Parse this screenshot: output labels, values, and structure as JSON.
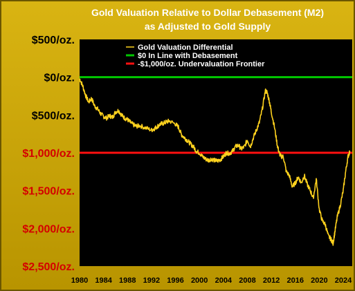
{
  "chart_data": {
    "type": "line",
    "title_line1": "Gold Valuation Relative to Dollar Debasement (M2)",
    "title_line2": "as Adjusted to Gold Supply",
    "ylim": [
      -2500,
      500
    ],
    "xlim": [
      1980,
      2025.5
    ],
    "y_ticks": [
      {
        "value": 500,
        "label": "$500/oz.",
        "color": "#000000"
      },
      {
        "value": 0,
        "label": "$0/oz.",
        "color": "#000000"
      },
      {
        "value": -500,
        "label": "$500/oz.",
        "color": "#000000"
      },
      {
        "value": -1000,
        "label": "$1,000/oz.",
        "color": "#D40000"
      },
      {
        "value": -1500,
        "label": "$1,500/oz.",
        "color": "#D40000"
      },
      {
        "value": -2000,
        "label": "$2,000/oz.",
        "color": "#D40000"
      },
      {
        "value": -2500,
        "label": "$2,500/oz.",
        "color": "#D40000"
      }
    ],
    "x_ticks": [
      "1980",
      "1984",
      "1988",
      "1992",
      "1996",
      "2000",
      "2004",
      "2008",
      "2012",
      "2016",
      "2020",
      "2024"
    ],
    "legend_position": "top-center",
    "series": [
      {
        "name": "Gold Valuation Differential",
        "color": "#FFD21E",
        "x": [
          1980.0,
          1980.5,
          1981.0,
          1981.5,
          1982.0,
          1982.5,
          1983.0,
          1983.5,
          1984.0,
          1984.5,
          1985.0,
          1985.5,
          1986.0,
          1986.5,
          1987.0,
          1987.5,
          1988.0,
          1988.5,
          1989.0,
          1989.5,
          1990.0,
          1991.0,
          1992.0,
          1992.5,
          1993.0,
          1993.5,
          1994.0,
          1994.5,
          1995.0,
          1996.0,
          1996.5,
          1997.0,
          1997.5,
          1998.0,
          1998.5,
          1999.0,
          1999.5,
          2000.0,
          2000.5,
          2001.0,
          2001.5,
          2002.0,
          2002.5,
          2003.0,
          2003.5,
          2004.0,
          2004.5,
          2005.0,
          2005.5,
          2006.0,
          2006.5,
          2007.0,
          2007.5,
          2008.0,
          2008.5,
          2009.0,
          2009.5,
          2010.0,
          2010.5,
          2011.0,
          2011.3,
          2011.7,
          2012.0,
          2012.5,
          2013.0,
          2013.3,
          2013.6,
          2014.0,
          2014.5,
          2015.0,
          2015.5,
          2016.0,
          2016.5,
          2017.0,
          2017.5,
          2018.0,
          2018.5,
          2019.0,
          2019.5,
          2020.0,
          2020.5,
          2021.0,
          2021.5,
          2022.0,
          2022.3,
          2022.6,
          2023.0,
          2023.5,
          2024.0,
          2024.4,
          2024.8,
          2025.1
        ],
        "values": [
          -20,
          -110,
          -240,
          -330,
          -280,
          -380,
          -420,
          -480,
          -520,
          -540,
          -510,
          -530,
          -460,
          -440,
          -500,
          -540,
          -560,
          -600,
          -630,
          -650,
          -640,
          -670,
          -700,
          -680,
          -650,
          -620,
          -610,
          -590,
          -580,
          -620,
          -660,
          -760,
          -800,
          -840,
          -880,
          -920,
          -980,
          -1000,
          -1050,
          -1080,
          -1100,
          -1080,
          -1100,
          -1110,
          -1090,
          -1050,
          -1000,
          -1010,
          -980,
          -920,
          -900,
          -950,
          -920,
          -830,
          -920,
          -800,
          -700,
          -600,
          -420,
          -180,
          -200,
          -330,
          -460,
          -650,
          -900,
          -1000,
          -1050,
          -1050,
          -1250,
          -1300,
          -1450,
          -1400,
          -1320,
          -1400,
          -1300,
          -1420,
          -1500,
          -1600,
          -1350,
          -1750,
          -1900,
          -1950,
          -2100,
          -2150,
          -2200,
          -2050,
          -1850,
          -1700,
          -1500,
          -1250,
          -1050,
          -980
        ]
      },
      {
        "name": "$0 In Line with Debasement",
        "color": "#00C800",
        "value": 0
      },
      {
        "name": "-$1,000/oz. Undervaluation Frontier",
        "color": "#FF1010",
        "value": -1000
      }
    ]
  }
}
